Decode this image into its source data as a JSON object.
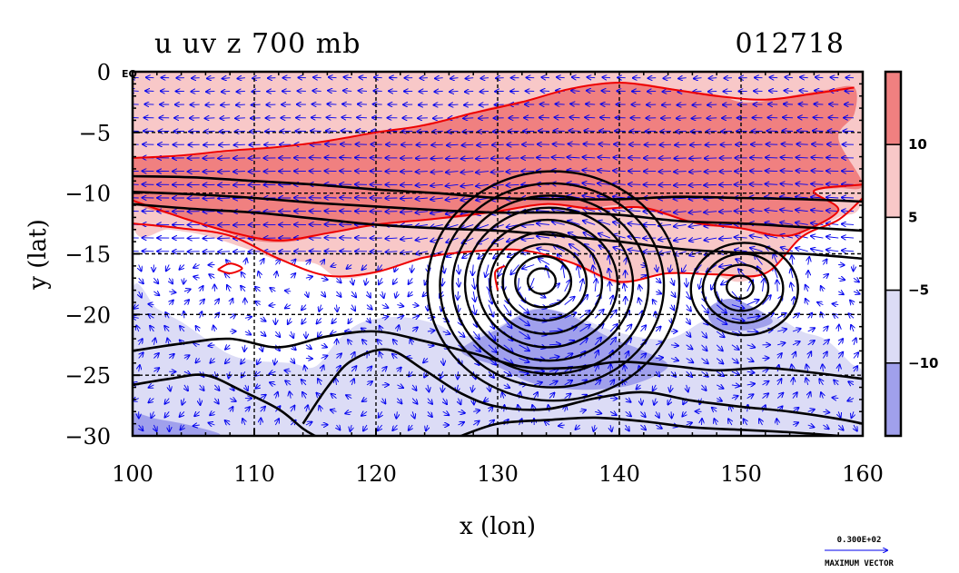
{
  "chart_data": {
    "type": "heatmap",
    "title": "u uv z 700 mb",
    "subtitle": "012718",
    "xlabel": "x (lon)",
    "ylabel": "y (lat)",
    "xlim": [
      100,
      160
    ],
    "ylim": [
      -30,
      0
    ],
    "x_ticks": [
      100,
      110,
      120,
      130,
      140,
      150,
      160
    ],
    "x_tick_labels": [
      "100",
      "110",
      "120",
      "130",
      "140",
      "150",
      "160"
    ],
    "y_ticks": [
      0,
      -5,
      -10,
      -15,
      -20,
      -25,
      -30
    ],
    "y_tick_labels": [
      "0",
      "−5",
      "−10",
      "−15",
      "−20",
      "−25",
      "−30"
    ],
    "y_top_label_suffix": "EQ",
    "grid": true,
    "shading_levels": [
      -10,
      -5,
      5,
      10
    ],
    "colorbar_labels": [
      "10",
      "5",
      "−5",
      "−10"
    ],
    "colors": {
      "strong_positive": "#f08080",
      "positive": "#f8c8c8",
      "neutral": "#ffffff",
      "negative": "#dcdcf6",
      "strong_negative": "#a0a0ec",
      "contour_u": "#ee0000",
      "contour_z": "#000000",
      "vectors": "#0000ee"
    },
    "shaded_regions": [
      {
        "level": "positive",
        "polygon": [
          [
            100,
            0
          ],
          [
            160,
            0
          ],
          [
            160,
            -10.3
          ],
          [
            158,
            -12
          ],
          [
            155,
            -13.5
          ],
          [
            153,
            -15.8
          ],
          [
            150,
            -17.3
          ],
          [
            147,
            -16.5
          ],
          [
            143,
            -16.7
          ],
          [
            140,
            -17.5
          ],
          [
            137,
            -16.3
          ],
          [
            134,
            -14.8
          ],
          [
            130,
            -14.7
          ],
          [
            127,
            -14.8
          ],
          [
            123,
            -15.5
          ],
          [
            120,
            -16.6
          ],
          [
            117,
            -17
          ],
          [
            115,
            -15.8
          ],
          [
            112,
            -15.5
          ],
          [
            110,
            -14.8
          ],
          [
            106,
            -13.5
          ],
          [
            103,
            -13
          ],
          [
            100,
            -12.6
          ]
        ]
      },
      {
        "level": "strong_positive",
        "polygon": [
          [
            100,
            -7.3
          ],
          [
            103,
            -7.1
          ],
          [
            106,
            -6.8
          ],
          [
            110,
            -6.4
          ],
          [
            113,
            -6.2
          ],
          [
            117,
            -5.6
          ],
          [
            120,
            -5
          ],
          [
            123,
            -4.5
          ],
          [
            127,
            -3.6
          ],
          [
            130,
            -2.8
          ],
          [
            133,
            -2.2
          ],
          [
            137,
            -1.2
          ],
          [
            141,
            -0.9
          ],
          [
            145,
            -1.5
          ],
          [
            148,
            -1.9
          ],
          [
            150,
            -2.5
          ],
          [
            152,
            -2.4
          ],
          [
            154,
            -2
          ],
          [
            157,
            -1.5
          ],
          [
            159.3,
            -1.3
          ],
          [
            159.3,
            -3.5
          ],
          [
            158,
            -5.5
          ],
          [
            160,
            -9.3
          ],
          [
            158,
            -9.6
          ],
          [
            156,
            -9.8
          ],
          [
            158,
            -11.4
          ],
          [
            155,
            -13.2
          ],
          [
            152,
            -13.5
          ],
          [
            150,
            -12.8
          ],
          [
            147,
            -12.7
          ],
          [
            143,
            -11.6
          ],
          [
            140,
            -11
          ],
          [
            137,
            -11.3
          ],
          [
            134,
            -10.9
          ],
          [
            130,
            -11.5
          ],
          [
            127,
            -12
          ],
          [
            124,
            -12.2
          ],
          [
            120,
            -12.6
          ],
          [
            117,
            -13.1
          ],
          [
            113,
            -14
          ],
          [
            110,
            -13.9
          ],
          [
            107,
            -13
          ],
          [
            104,
            -12
          ],
          [
            100,
            -10.6
          ]
        ]
      },
      {
        "level": "negative",
        "polygon": [
          [
            100,
            -18
          ],
          [
            102,
            -19.5
          ],
          [
            104,
            -20.6
          ],
          [
            106,
            -22
          ],
          [
            108,
            -23.3
          ],
          [
            110,
            -23.8
          ],
          [
            113,
            -24
          ],
          [
            115,
            -24.3
          ],
          [
            117,
            -22
          ],
          [
            119,
            -20.6
          ],
          [
            122,
            -20.2
          ],
          [
            125,
            -20.8
          ],
          [
            127,
            -21.8
          ],
          [
            130,
            -21
          ],
          [
            133,
            -19.5
          ],
          [
            136,
            -20
          ],
          [
            140,
            -21.5
          ],
          [
            144,
            -22
          ],
          [
            147,
            -20.5
          ],
          [
            150,
            -19.5
          ],
          [
            153,
            -20.3
          ],
          [
            155,
            -21.4
          ],
          [
            157,
            -22.1
          ],
          [
            159,
            -24
          ],
          [
            160,
            -25
          ],
          [
            160,
            -30
          ],
          [
            100,
            -30
          ]
        ]
      },
      {
        "level": "strong_negative",
        "polygon": [
          [
            130,
            -21.2
          ],
          [
            133,
            -19.6
          ],
          [
            136,
            -20.1
          ],
          [
            139,
            -21.8
          ],
          [
            142,
            -23
          ],
          [
            144,
            -24.3
          ],
          [
            141,
            -25.8
          ],
          [
            137,
            -26.2
          ],
          [
            133,
            -25.7
          ],
          [
            130,
            -24.3
          ],
          [
            127,
            -23
          ]
        ]
      },
      {
        "level": "strong_negative",
        "polygon": [
          [
            147.3,
            -19.6
          ],
          [
            149,
            -18.7
          ],
          [
            151,
            -19.4
          ],
          [
            152.6,
            -20.6
          ],
          [
            150.5,
            -21.3
          ],
          [
            148,
            -21.1
          ]
        ]
      },
      {
        "level": "strong_negative",
        "polygon": [
          [
            100,
            -28.2
          ],
          [
            102,
            -28.6
          ],
          [
            105,
            -29.2
          ],
          [
            107,
            -30
          ],
          [
            100,
            -30
          ]
        ]
      }
    ],
    "geopotential_centers": [
      {
        "lon": 133.5,
        "lat": -17.2,
        "rings": 9
      },
      {
        "lon": 149.8,
        "lat": -17.7,
        "rings": 4
      }
    ],
    "geopotential_isolines": [
      [
        [
          100,
          -8.6
        ],
        [
          105,
          -8.7
        ],
        [
          110,
          -9
        ],
        [
          115,
          -9.3
        ],
        [
          120,
          -9.7
        ],
        [
          125,
          -10
        ],
        [
          130,
          -10.4
        ],
        [
          135,
          -10.5
        ],
        [
          140,
          -10.5
        ],
        [
          145,
          -10.3
        ],
        [
          150,
          -10.4
        ],
        [
          155,
          -10.5
        ],
        [
          160,
          -10.7
        ]
      ],
      [
        [
          100,
          -9.9
        ],
        [
          105,
          -10.1
        ],
        [
          110,
          -10.4
        ],
        [
          115,
          -10.8
        ],
        [
          120,
          -11.1
        ],
        [
          125,
          -11.4
        ],
        [
          130,
          -11.6
        ],
        [
          135,
          -11.6
        ],
        [
          140,
          -11.8
        ],
        [
          145,
          -12.3
        ],
        [
          150,
          -12.5
        ],
        [
          155,
          -12.8
        ],
        [
          160,
          -13.1
        ]
      ],
      [
        [
          100,
          -10.9
        ],
        [
          105,
          -11.3
        ],
        [
          110,
          -11.6
        ],
        [
          115,
          -12.1
        ],
        [
          120,
          -12.6
        ],
        [
          125,
          -12.9
        ],
        [
          130,
          -13.1
        ],
        [
          135,
          -13.5
        ],
        [
          140,
          -14
        ],
        [
          145,
          -14.6
        ],
        [
          150,
          -14.9
        ],
        [
          155,
          -15
        ],
        [
          160,
          -15.4
        ]
      ],
      [
        [
          100,
          -23
        ],
        [
          104,
          -22.4
        ],
        [
          108,
          -22
        ],
        [
          112,
          -22.7
        ],
        [
          116,
          -21.8
        ],
        [
          120,
          -21.4
        ],
        [
          124,
          -22.2
        ],
        [
          128,
          -23.2
        ],
        [
          132,
          -24.3
        ],
        [
          136,
          -24.4
        ],
        [
          140,
          -23.9
        ],
        [
          144,
          -24.2
        ],
        [
          148,
          -24.6
        ],
        [
          152,
          -24.4
        ],
        [
          156,
          -24.8
        ],
        [
          160,
          -25.3
        ]
      ],
      [
        [
          114,
          -29
        ],
        [
          116,
          -26
        ],
        [
          118,
          -23.8
        ],
        [
          121,
          -22.9
        ],
        [
          124,
          -24.6
        ],
        [
          127,
          -26.5
        ],
        [
          130,
          -27.6
        ],
        [
          134,
          -27.8
        ],
        [
          138,
          -26.9
        ],
        [
          142,
          -26.4
        ],
        [
          146,
          -27.1
        ],
        [
          150,
          -27.6
        ],
        [
          154,
          -28
        ],
        [
          158,
          -28.6
        ],
        [
          160,
          -29
        ]
      ],
      [
        [
          100,
          -25.8
        ],
        [
          103,
          -25.3
        ],
        [
          106,
          -25
        ],
        [
          109,
          -26.3
        ],
        [
          112,
          -27.8
        ],
        [
          114,
          -29.4
        ],
        [
          115,
          -30
        ]
      ],
      [
        [
          127,
          -30
        ],
        [
          130,
          -29
        ],
        [
          134,
          -28.7
        ],
        [
          138,
          -28.5
        ],
        [
          142,
          -28.8
        ],
        [
          146,
          -29.3
        ],
        [
          150,
          -29.5
        ],
        [
          154,
          -29.7
        ],
        [
          158,
          -30
        ]
      ]
    ],
    "u_isolines": [
      [
        [
          100,
          -7.1
        ],
        [
          104,
          -6.9
        ],
        [
          108,
          -6.5
        ],
        [
          112,
          -6.2
        ],
        [
          116,
          -5.7
        ],
        [
          120,
          -5
        ],
        [
          124,
          -4.4
        ],
        [
          128,
          -3.4
        ],
        [
          132,
          -2.5
        ],
        [
          136,
          -1.4
        ],
        [
          140,
          -0.9
        ],
        [
          144,
          -1.4
        ],
        [
          148,
          -2
        ],
        [
          152,
          -2.3
        ],
        [
          156,
          -1.8
        ],
        [
          159.3,
          -1.3
        ]
      ],
      [
        [
          100,
          -12.5
        ],
        [
          104,
          -12.9
        ],
        [
          108,
          -13.5
        ],
        [
          112,
          -15.4
        ],
        [
          116,
          -16.8
        ],
        [
          120,
          -16.5
        ],
        [
          124,
          -15.3
        ],
        [
          128,
          -14.8
        ],
        [
          132,
          -14.7
        ],
        [
          136,
          -15.7
        ],
        [
          140,
          -17.3
        ],
        [
          144,
          -16.6
        ],
        [
          148,
          -16.7
        ],
        [
          152,
          -16.6
        ],
        [
          155,
          -13.6
        ],
        [
          158,
          -12.2
        ],
        [
          160,
          -10.4
        ]
      ],
      [
        [
          100,
          -10.6
        ],
        [
          104,
          -12
        ],
        [
          108,
          -13.2
        ],
        [
          112,
          -13.9
        ],
        [
          116,
          -13.3
        ],
        [
          120,
          -12.6
        ],
        [
          125,
          -12.1
        ],
        [
          130,
          -11.5
        ],
        [
          134,
          -10.9
        ],
        [
          138,
          -11.3
        ],
        [
          142,
          -11.2
        ],
        [
          146,
          -12.4
        ],
        [
          150,
          -12.9
        ],
        [
          153,
          -13.5
        ],
        [
          155,
          -13.2
        ],
        [
          158,
          -11.4
        ],
        [
          156,
          -9.8
        ],
        [
          160,
          -9.3
        ]
      ],
      [
        [
          107,
          -16.3
        ],
        [
          108,
          -16.6
        ],
        [
          109,
          -16.2
        ],
        [
          108,
          -15.8
        ],
        [
          107,
          -16.3
        ]
      ],
      [
        [
          130,
          -18
        ],
        [
          129.8,
          -16.5
        ],
        [
          130.6,
          -16
        ]
      ]
    ],
    "vector_reference": {
      "value": "0.300E+02",
      "label": "MAXIMUM VECTOR"
    }
  }
}
